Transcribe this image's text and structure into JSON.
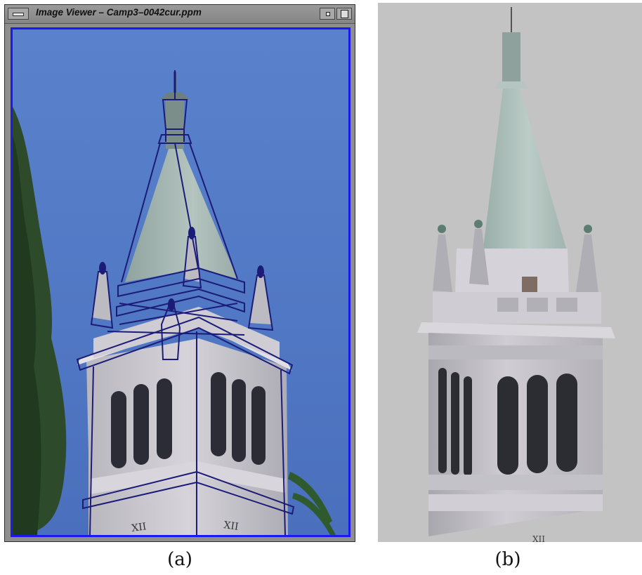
{
  "window": {
    "title": "Image Viewer – Camp3–0042cur.ppm",
    "icons": [
      "window-menu-icon",
      "minimize-icon",
      "maximize-icon"
    ]
  },
  "captions": {
    "a": "(a)",
    "b": "(b)"
  },
  "clock": {
    "numeral_left": "XII",
    "numeral_right": "XII"
  },
  "colors": {
    "sky": "#4f76c4",
    "frame_blue": "#1a1af0",
    "model_outline": "#1c1c78",
    "render_bg": "#c3c3c3",
    "stone": "#c9c7cc",
    "roof": "#9fb3ad"
  }
}
